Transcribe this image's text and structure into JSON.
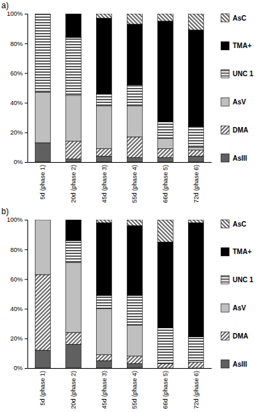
{
  "chart_data": [
    {
      "type": "bar",
      "title": "a)",
      "stacked": true,
      "legend": "right",
      "categories": [
        "5d (phase 1)",
        "20d (phase 2)",
        "45d (phase 3)",
        "55d (phase 4)",
        "66d (phase 5)",
        "72d (phase 6)"
      ],
      "ylim": [
        0,
        100
      ],
      "yticks": [
        {
          "value": 0,
          "label": "0%"
        },
        {
          "value": 20,
          "label": "20%"
        },
        {
          "value": 40,
          "label": "40%"
        },
        {
          "value": 60,
          "label": "60%"
        },
        {
          "value": 80,
          "label": "80%"
        },
        {
          "value": 100,
          "label": "100%"
        }
      ],
      "series": [
        {
          "name": "AsIII",
          "color": "#606060",
          "marker": "solid",
          "values": [
            13,
            2,
            4,
            3,
            3,
            4
          ]
        },
        {
          "name": "DMA",
          "color": "#000000",
          "marker": "diagonal-up",
          "values": [
            0,
            12,
            5,
            14,
            6,
            4
          ]
        },
        {
          "name": "AsV",
          "color": "#bfbfbf",
          "marker": "solid",
          "values": [
            34,
            31,
            29,
            21,
            7,
            2
          ]
        },
        {
          "name": "UNC 1",
          "color": "#000000",
          "marker": "horizontal",
          "values": [
            53,
            39,
            8,
            14,
            11,
            14
          ]
        },
        {
          "name": "TMA+",
          "color": "#000000",
          "marker": "solid",
          "values": [
            0,
            16,
            51,
            41,
            68,
            65
          ]
        },
        {
          "name": "AsC",
          "color": "#000000",
          "marker": "diagonal-down",
          "values": [
            0,
            0,
            3,
            7,
            5,
            11
          ]
        }
      ]
    },
    {
      "type": "bar",
      "title": "b)",
      "stacked": true,
      "legend": "right",
      "categories": [
        "5d (phase 1)",
        "20d (phase 2)",
        "45d (phase 3)",
        "55d (phase 4)",
        "66d (phase 5)",
        "72d (phase 6)"
      ],
      "ylim": [
        0,
        100
      ],
      "yticks": [
        {
          "value": 0,
          "label": "0%"
        },
        {
          "value": 20,
          "label": "20%"
        },
        {
          "value": 40,
          "label": "40%"
        },
        {
          "value": 60,
          "label": "60%"
        },
        {
          "value": 80,
          "label": "80%"
        },
        {
          "value": 100,
          "label": "100%"
        }
      ],
      "series": [
        {
          "name": "AsIII",
          "color": "#606060",
          "marker": "solid",
          "values": [
            12,
            16,
            5,
            3,
            0,
            0
          ]
        },
        {
          "name": "DMA",
          "color": "#000000",
          "marker": "diagonal-up",
          "values": [
            51,
            8,
            4,
            5,
            3,
            4
          ]
        },
        {
          "name": "AsV",
          "color": "#bfbfbf",
          "marker": "solid",
          "values": [
            37,
            47,
            31,
            21,
            0,
            0
          ]
        },
        {
          "name": "UNC 1",
          "color": "#000000",
          "marker": "horizontal",
          "values": [
            0,
            15,
            9,
            20,
            24,
            17
          ]
        },
        {
          "name": "TMA+",
          "color": "#000000",
          "marker": "solid",
          "values": [
            0,
            14,
            49,
            47,
            58,
            77
          ]
        },
        {
          "name": "AsC",
          "color": "#000000",
          "marker": "diagonal-down",
          "values": [
            0,
            0,
            2,
            4,
            15,
            2
          ]
        }
      ]
    }
  ]
}
